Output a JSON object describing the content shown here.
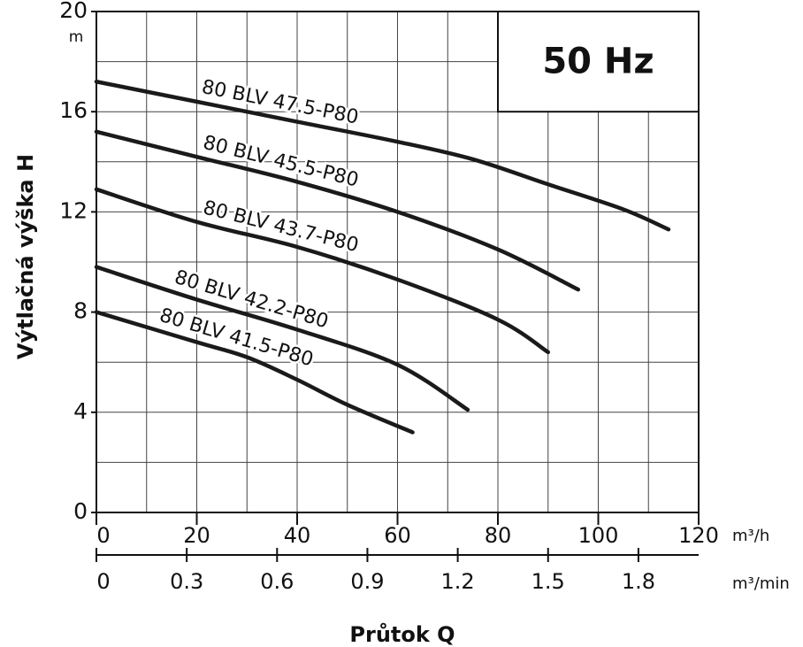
{
  "chart_data": {
    "type": "line",
    "title": "50 Hz",
    "y_label": "Výtlačná výška H",
    "y_unit": "m",
    "x_label": "Průtok Q",
    "x_unit": "m³/h",
    "x2_unit": "m³/min",
    "xlim": [
      0,
      120
    ],
    "xticks": [
      0,
      20,
      40,
      60,
      80,
      100,
      120
    ],
    "x2lim": [
      0,
      2
    ],
    "x2ticks": [
      0,
      0.3,
      0.6,
      0.9,
      1.2,
      1.5,
      1.8
    ],
    "ylim": [
      0,
      20
    ],
    "yticks": [
      0,
      4,
      8,
      12,
      16,
      20
    ],
    "xgrid": [
      10,
      20,
      30,
      40,
      50,
      60,
      70,
      80,
      90,
      100,
      110
    ],
    "ygrid": [
      2,
      4,
      6,
      8,
      10,
      12,
      14,
      16,
      18
    ],
    "series": [
      {
        "name": "80 BLV 47.5-P80",
        "color": "#1a1a1a",
        "x": [
          0,
          20,
          40,
          60,
          75,
          90,
          105,
          114
        ],
        "values": [
          17.2,
          16.4,
          15.6,
          14.8,
          14.1,
          13.1,
          12.1,
          11.3
        ]
      },
      {
        "name": "80 BLV 45.5-P80",
        "color": "#1a1a1a",
        "x": [
          0,
          20,
          40,
          60,
          80,
          96
        ],
        "values": [
          15.2,
          14.2,
          13.2,
          12.0,
          10.5,
          8.9
        ]
      },
      {
        "name": "80 BLV 43.7-P80",
        "color": "#1a1a1a",
        "x": [
          0,
          20,
          40,
          60,
          80,
          90
        ],
        "values": [
          12.9,
          11.6,
          10.6,
          9.3,
          7.7,
          6.4
        ]
      },
      {
        "name": "80 BLV 42.2-P80",
        "color": "#1a1a1a",
        "x": [
          0,
          20,
          40,
          60,
          74
        ],
        "values": [
          9.8,
          8.5,
          7.3,
          5.9,
          4.1
        ]
      },
      {
        "name": "80 BLV 41.5-P80",
        "color": "#1a1a1a",
        "x": [
          0,
          20,
          30,
          40,
          50,
          63
        ],
        "values": [
          8.0,
          6.8,
          6.2,
          5.3,
          4.3,
          3.2
        ]
      }
    ]
  }
}
